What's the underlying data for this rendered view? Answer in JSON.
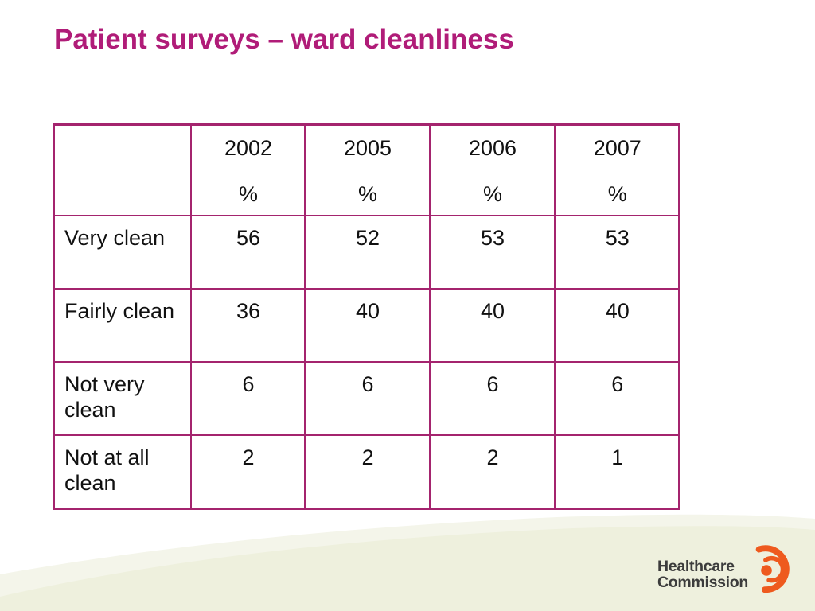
{
  "slide": {
    "title": "Patient surveys – ward cleanliness"
  },
  "table": {
    "corner": "",
    "columns": [
      {
        "year": "2002",
        "unit": "%"
      },
      {
        "year": "2005",
        "unit": "%"
      },
      {
        "year": "2006",
        "unit": "%"
      },
      {
        "year": "2007",
        "unit": "%"
      }
    ],
    "rows": [
      {
        "label": "Very clean",
        "values": [
          "56",
          "52",
          "53",
          "53"
        ]
      },
      {
        "label": "Fairly clean",
        "values": [
          "36",
          "40",
          "40",
          "40"
        ]
      },
      {
        "label": "Not very clean",
        "values": [
          "6",
          "6",
          "6",
          "6"
        ]
      },
      {
        "label": "Not at all clean",
        "values": [
          "2",
          "2",
          "2",
          "1"
        ]
      }
    ]
  },
  "logo": {
    "line1": "Healthcare",
    "line2": "Commission"
  },
  "colors": {
    "title": "#b01c78",
    "table_border": "#a4246e",
    "swoosh": "#eef0dd",
    "logo_orange": "#ee5a1e",
    "logo_text": "#3c3c3c"
  }
}
